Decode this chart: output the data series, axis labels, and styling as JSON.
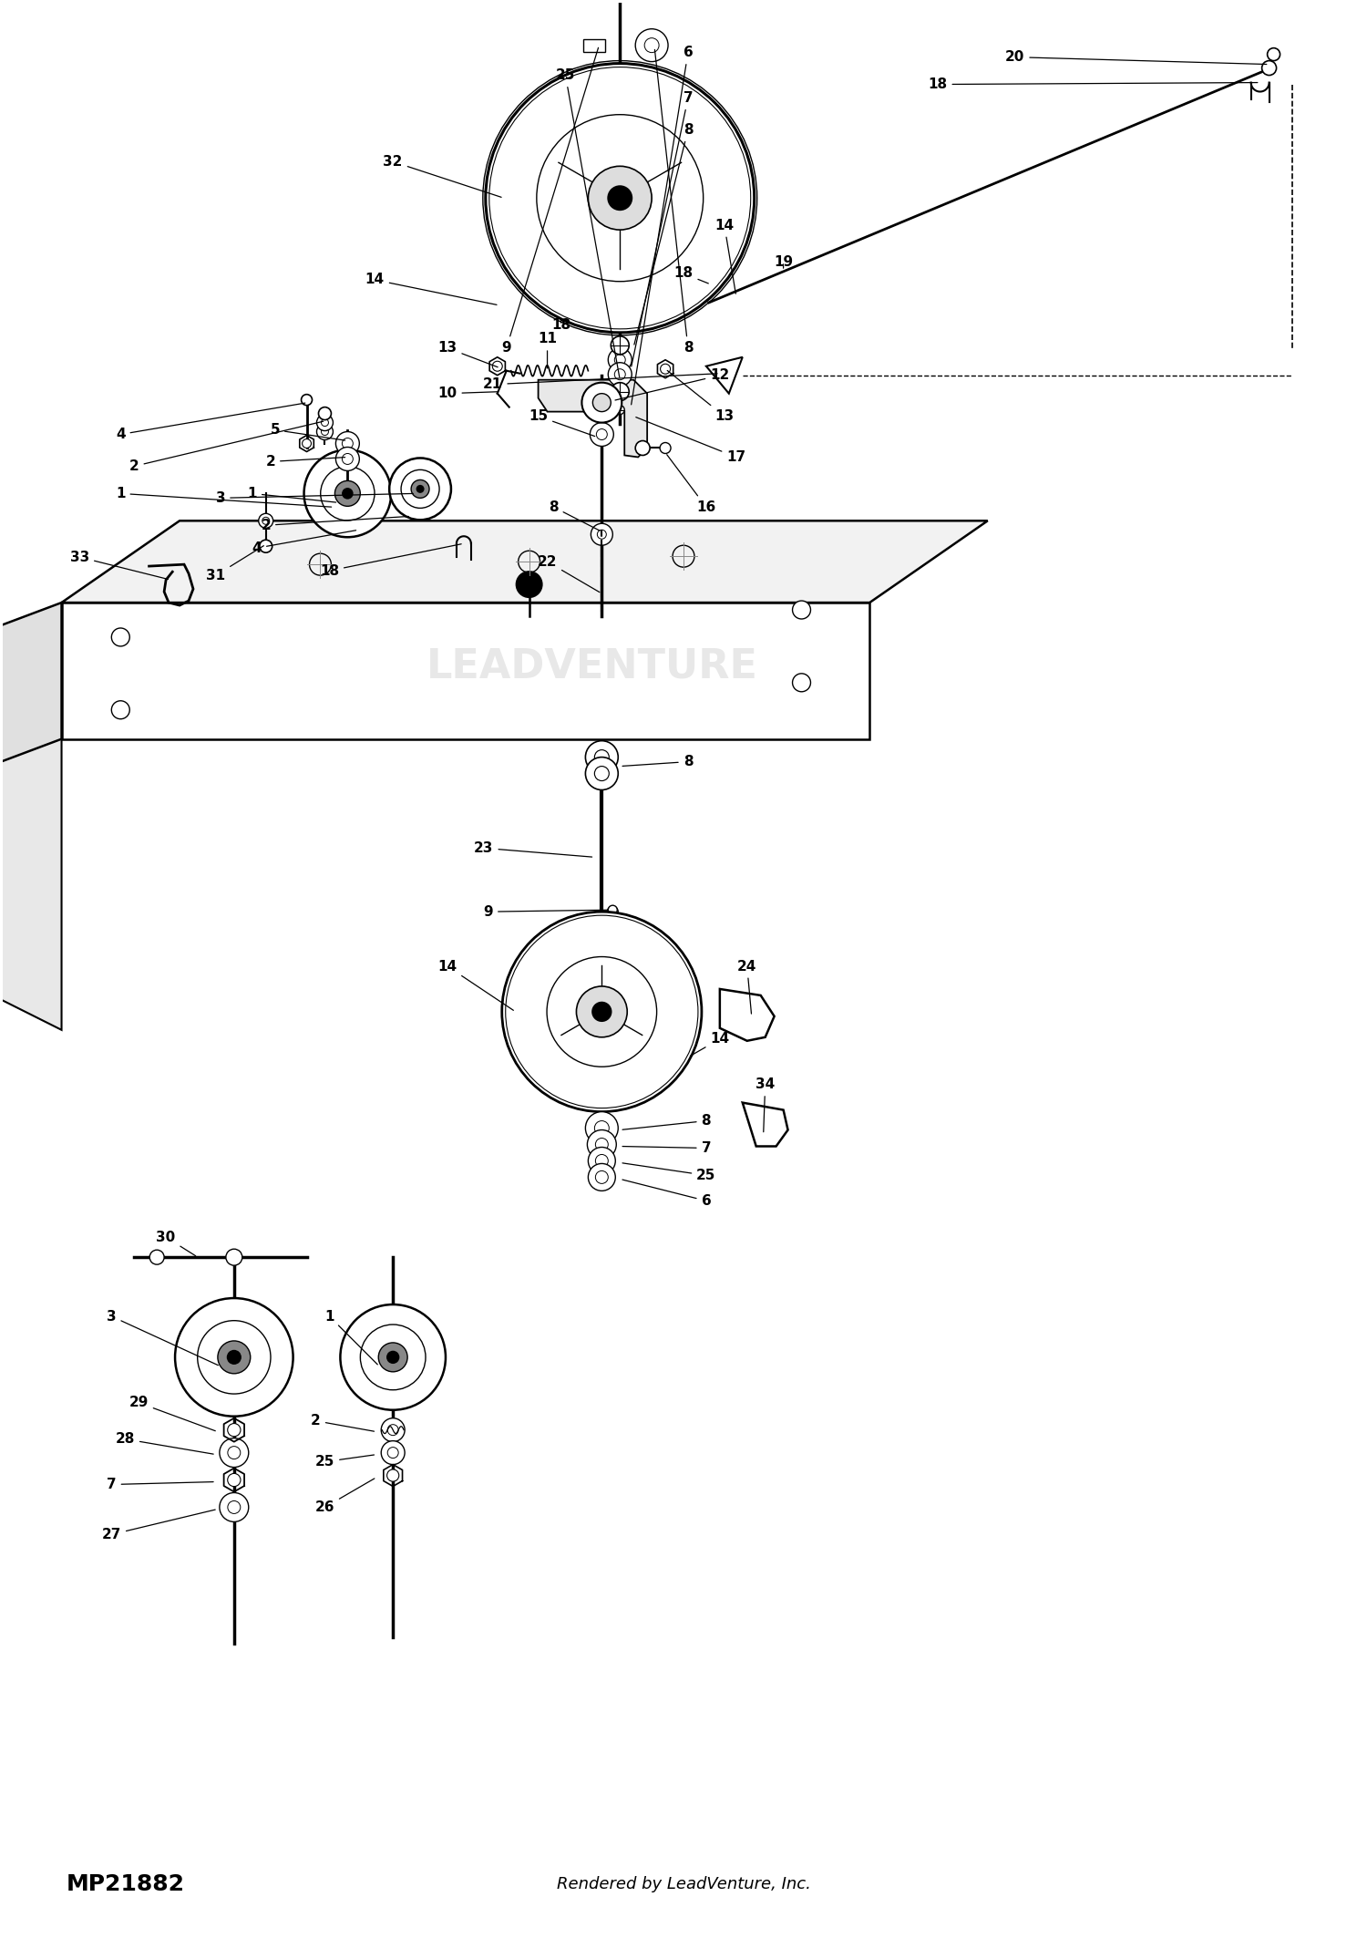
{
  "bg_color": "#ffffff",
  "fig_width": 15.0,
  "fig_height": 21.26,
  "part_number_label": "MP21882",
  "footer_text": "Rendered by LeadVenture, Inc.",
  "watermark": "LEADVENTURE"
}
